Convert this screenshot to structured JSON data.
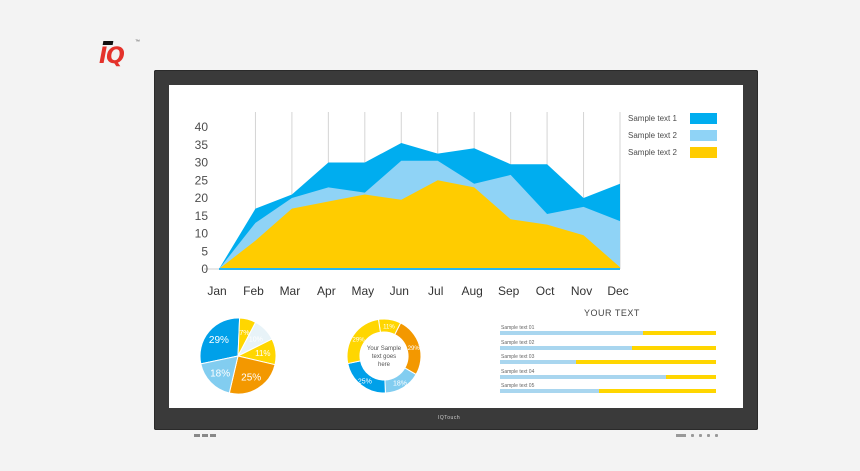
{
  "logo": {
    "text": "IQ",
    "tm": "™"
  },
  "monitor": {
    "brand": "IQTouch"
  },
  "chart_data": [
    {
      "type": "area",
      "x": [
        "Jan",
        "Feb",
        "Mar",
        "Apr",
        "May",
        "Jun",
        "Jul",
        "Aug",
        "Sep",
        "Oct",
        "Nov",
        "Dec"
      ],
      "yticks": [
        0,
        5,
        10,
        15,
        20,
        25,
        30,
        35,
        40
      ],
      "ylim": [
        0,
        40
      ],
      "grid": "vertical",
      "legend_position": "top-right",
      "series": [
        {
          "name": "Sample text 1",
          "color": "#00adef",
          "values": [
            0,
            17,
            21,
            30,
            30,
            35.5,
            32.5,
            34,
            29.5,
            29.5,
            20,
            24
          ]
        },
        {
          "name": "Sample text 2",
          "color": "#8fd3f6",
          "values": [
            0,
            13,
            20,
            23,
            21.5,
            30.5,
            30.5,
            24,
            26.5,
            15.5,
            17.5,
            13.5
          ]
        },
        {
          "name": "Sample text 2",
          "color": "#ffcc00",
          "values": [
            0,
            8,
            17,
            19,
            21,
            19.5,
            25,
            23,
            14,
            12.5,
            9.5,
            0.5
          ]
        }
      ]
    },
    {
      "type": "pie",
      "labels": [
        "29%",
        "7%",
        "10%",
        "11%",
        "25%",
        "18%"
      ],
      "values": [
        29,
        7,
        10,
        11,
        25,
        18
      ],
      "colors": [
        "#00a0e9",
        "#ffd600",
        "#e8f3f8",
        "#ffd600",
        "#f39800",
        "#82cdf0"
      ]
    },
    {
      "type": "pie",
      "style": "donut",
      "center_text": [
        "Your Sample",
        "text goes",
        "here"
      ],
      "labels": [
        "11%",
        "29%",
        "18%",
        "25%",
        "29%"
      ],
      "values": [
        11,
        29,
        18,
        25,
        29
      ],
      "colors": [
        "#ffd600",
        "#f39800",
        "#82cdf0",
        "#00a0e9",
        "#ffd600"
      ]
    },
    {
      "type": "bar",
      "orientation": "horizontal",
      "title": "YOUR TEXT",
      "categories": [
        "Sample text 01",
        "Sample text 02",
        "Sample text 03",
        "Sample text 04",
        "Sample text 05"
      ],
      "values": [
        66,
        61,
        35,
        77,
        46
      ],
      "max": 100,
      "colors": {
        "fill": "#a9d6ef",
        "track": "#ffd600"
      }
    }
  ]
}
